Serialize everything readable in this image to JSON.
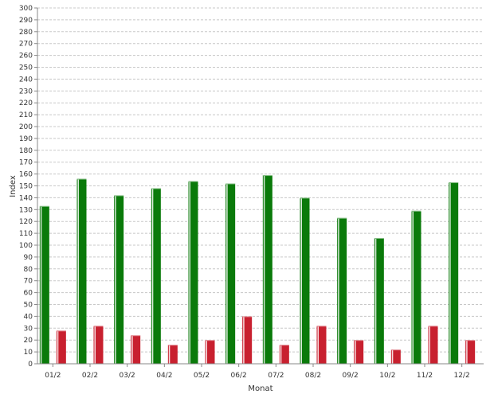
{
  "chart_data": {
    "type": "bar",
    "title": "",
    "xlabel": "Monat",
    "ylabel": "Index",
    "ylim": [
      0,
      300
    ],
    "ytick_step": 10,
    "grid": true,
    "legend": "none",
    "categories": [
      "01/2",
      "02/2",
      "03/2",
      "04/2",
      "05/2",
      "06/2",
      "07/2",
      "08/2",
      "09/2",
      "10/2",
      "11/2",
      "12/2"
    ],
    "series": [
      {
        "color": "#0a7a0a",
        "values": [
          133,
          156,
          142,
          148,
          154,
          152,
          159,
          140,
          123,
          106,
          129,
          153
        ]
      },
      {
        "color": "#c8202f",
        "values": [
          28,
          32,
          24,
          16,
          20,
          40,
          16,
          32,
          20,
          12,
          32,
          20
        ]
      }
    ]
  }
}
